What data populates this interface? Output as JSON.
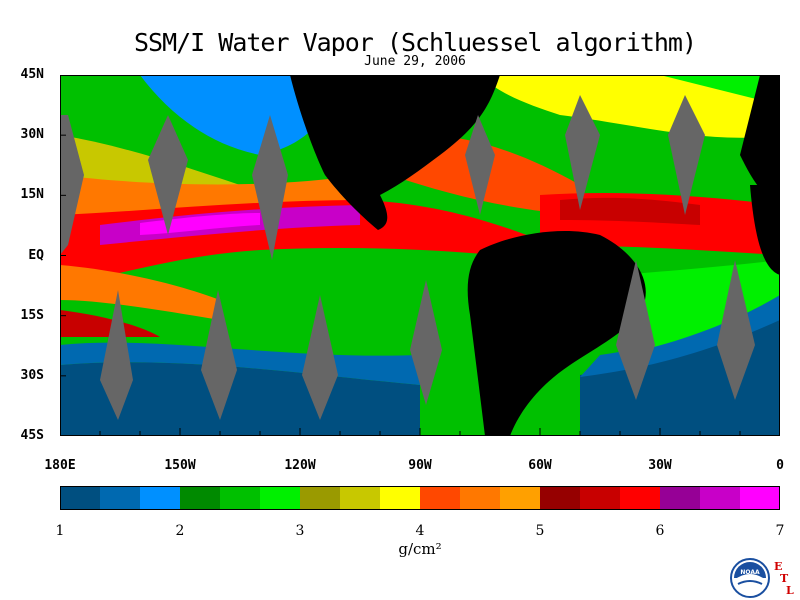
{
  "title": "SSM/I Water Vapor (Schluessel algorithm)",
  "subtitle": "June 29, 2006",
  "map": {
    "lat_labels": [
      "45N",
      "30N",
      "15N",
      "EQ",
      "15S",
      "30S",
      "45S"
    ],
    "lon_labels": [
      "180E",
      "150W",
      "120W",
      "90W",
      "60W",
      "30W",
      "0"
    ],
    "lat_range": [
      -45,
      45
    ],
    "lon_range": [
      -180,
      0
    ],
    "land_color": "#000000",
    "no_data_color": "#666666"
  },
  "colorbar": {
    "colors": [
      "#004f80",
      "#0069b0",
      "#0090ff",
      "#008a00",
      "#00c000",
      "#00f000",
      "#9a9a00",
      "#c8c800",
      "#ffff00",
      "#ff4800",
      "#ff7800",
      "#ffa000",
      "#960000",
      "#c80000",
      "#ff0000",
      "#960096",
      "#c800c8",
      "#ff00ff"
    ],
    "tick_labels": [
      "1",
      "2",
      "3",
      "4",
      "5",
      "6",
      "7"
    ],
    "range": [
      1,
      7
    ],
    "units": "g/cm²"
  },
  "logo": {
    "icon": "noaa-logo-icon",
    "text": "NOAA",
    "etl_letters": [
      "E",
      "T",
      "L"
    ]
  }
}
